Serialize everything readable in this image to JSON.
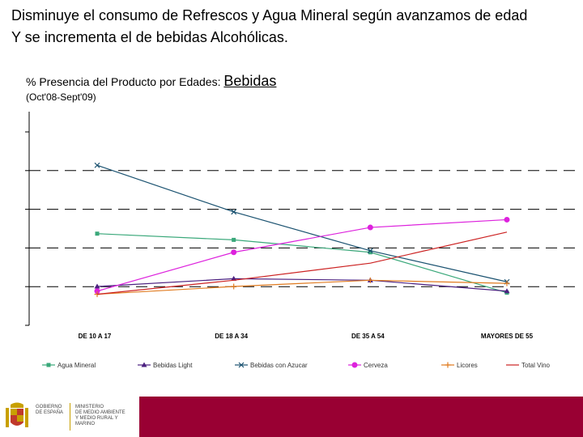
{
  "slide": {
    "headline_line1": "Disminuye el consumo de Refrescos y Agua Mineral según avanzamos de edad",
    "headline_line2": " Y se incrementa el de bebidas Alcohólicas.",
    "subtitle_prefix": "% Presencia del Producto por Edades: ",
    "subtitle_emph": "Bebidas",
    "period": "(Oct'08-Sept'09)"
  },
  "footer": {
    "gov_lines": [
      "GOBIERNO",
      "DE ESPAÑA"
    ],
    "ministry_lines": [
      "MINISTERIO",
      "DE MEDIO AMBIENTE",
      "Y MEDIO RURAL Y MARINO"
    ],
    "band_color": "#990033"
  },
  "chart_data": {
    "type": "line",
    "categories": [
      "DE 10 A 17",
      "DE 18 A 34",
      "DE 35 A 54",
      "MAYORES DE 55"
    ],
    "ylim": [
      0,
      100
    ],
    "grid": true,
    "legend_position": "bottom",
    "series": [
      {
        "name": "Agua Mineral",
        "color": "#3aa87a",
        "marker": "square",
        "values": [
          59,
          55,
          47,
          21
        ]
      },
      {
        "name": "Bebidas Light",
        "color": "#4b2080",
        "marker": "triangle",
        "values": [
          25,
          30,
          29,
          22
        ]
      },
      {
        "name": "Bebidas con Azucar",
        "color": "#1a5270",
        "marker": "x",
        "values": [
          103,
          73,
          48,
          28
        ]
      },
      {
        "name": "Cerveza",
        "color": "#dd22dd",
        "marker": "circle",
        "values": [
          22,
          47,
          63,
          68
        ]
      },
      {
        "name": "Licores",
        "color": "#e07b20",
        "marker": "plus",
        "values": [
          20,
          25,
          29,
          27
        ]
      },
      {
        "name": "Total Vino",
        "color": "#cc2222",
        "marker": "none",
        "values": [
          20,
          29,
          40,
          60
        ]
      }
    ]
  }
}
